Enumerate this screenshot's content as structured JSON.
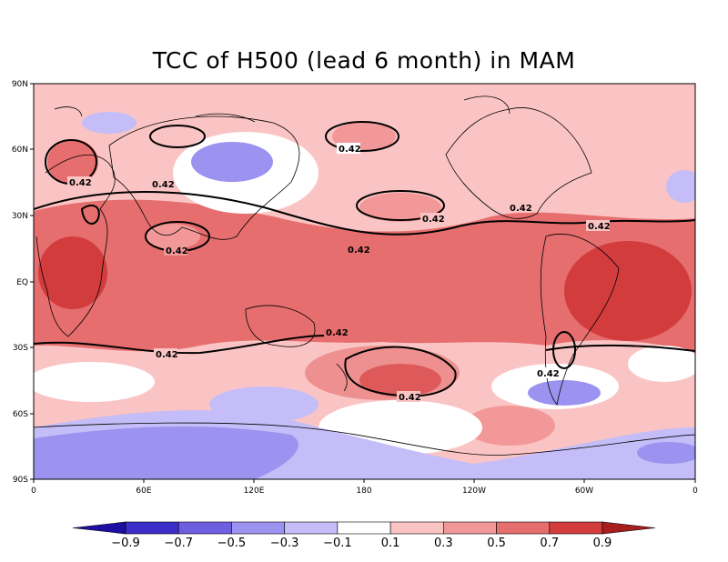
{
  "title": "TCC of H500 (lead 6 month) in MAM",
  "y_ticks": [
    "90N",
    "60N",
    "30N",
    "EQ",
    "30S",
    "60S",
    "90S"
  ],
  "x_ticks": [
    "0",
    "60E",
    "120E",
    "180",
    "120W",
    "60W",
    "0"
  ],
  "colorbar": {
    "labels": [
      "−0.9",
      "−0.7",
      "−0.5",
      "−0.3",
      "−0.1",
      "0.1",
      "0.3",
      "0.5",
      "0.7",
      "0.9"
    ],
    "colors": [
      "#1e0fa0",
      "#3c2ec8",
      "#6e5ee0",
      "#9c92f0",
      "#c4bdf8",
      "#ffffff",
      "#fbc4c4",
      "#f29898",
      "#e66e6e",
      "#d23c3c",
      "#a81e1e"
    ]
  },
  "contour_label": "0.42",
  "field_colors": {
    "neg_strong": "#9c92f0",
    "neg": "#c4bdf8",
    "neutral": "#ffffff",
    "pos_light": "#fbc4c4",
    "pos_mid": "#f29898",
    "pos": "#e66e6e",
    "pos_strong": "#d23c3c"
  }
}
